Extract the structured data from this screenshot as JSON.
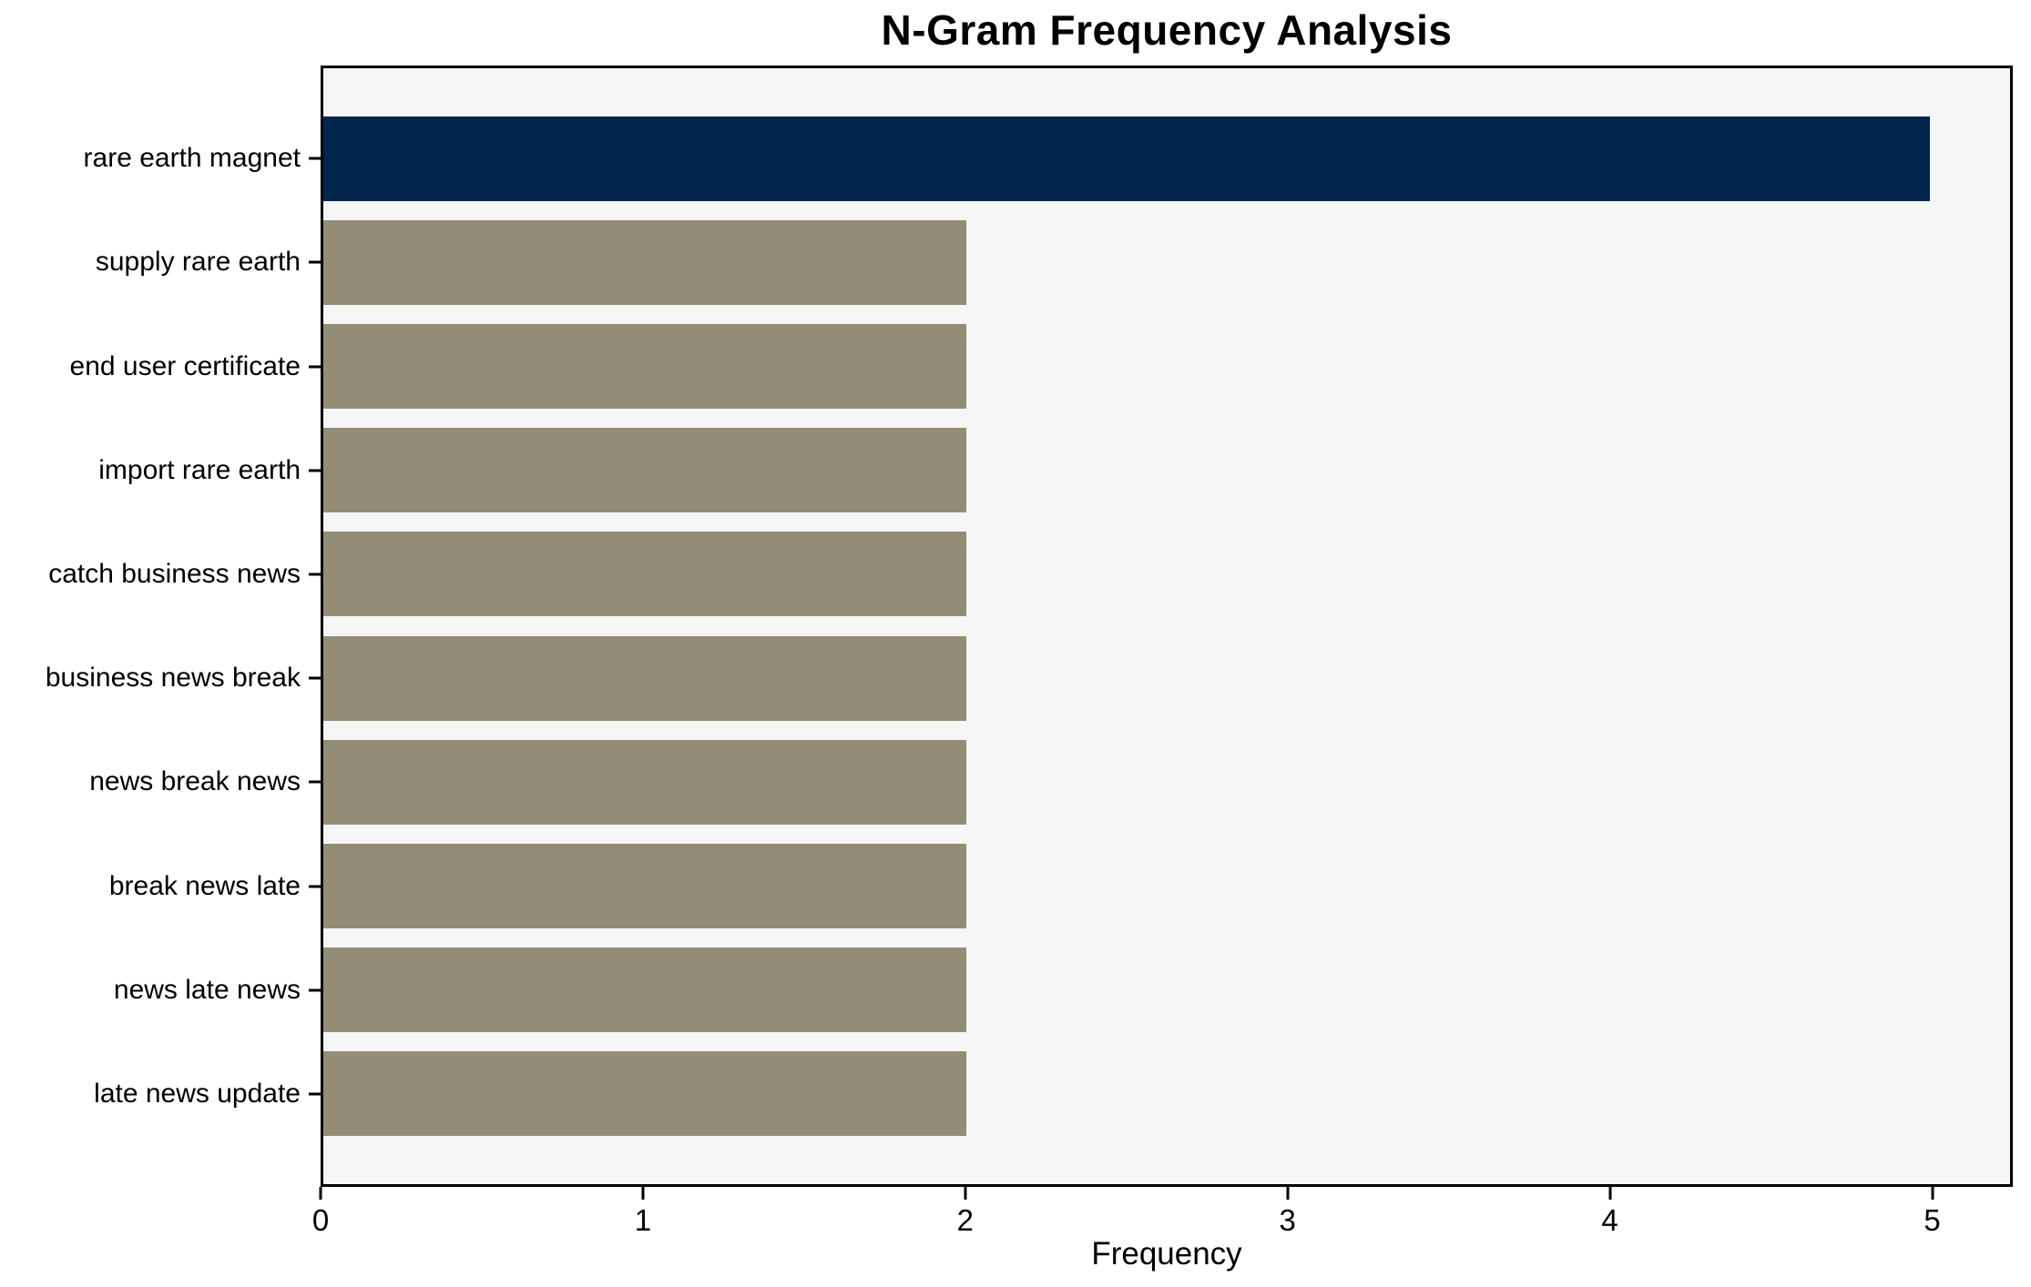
{
  "title": "N-Gram Frequency Analysis",
  "chart_data": {
    "type": "bar",
    "orientation": "horizontal",
    "title": "N-Gram Frequency Analysis",
    "xlabel": "Frequency",
    "ylabel": "",
    "categories": [
      "rare earth magnet",
      "supply rare earth",
      "end user certificate",
      "import rare earth",
      "catch business news",
      "business news break",
      "news break news",
      "break news late",
      "news late news",
      "late news update"
    ],
    "values": [
      5,
      2,
      2,
      2,
      2,
      2,
      2,
      2,
      2,
      2
    ],
    "colors": [
      "#02254C",
      "#948D75",
      "#948D75",
      "#948D75",
      "#948D75",
      "#948D75",
      "#948D75",
      "#948D75",
      "#948D75",
      "#948D75"
    ],
    "highlight_color": "#02254C",
    "default_color": "#948D75",
    "x_ticks": [
      0,
      1,
      2,
      3,
      4,
      5
    ],
    "xlim": [
      0,
      5.25
    ],
    "plot_background": "#F6F6F6",
    "figure_background": "#FFFFFF",
    "axis_color": "#000000",
    "grid": false,
    "legend": null
  }
}
